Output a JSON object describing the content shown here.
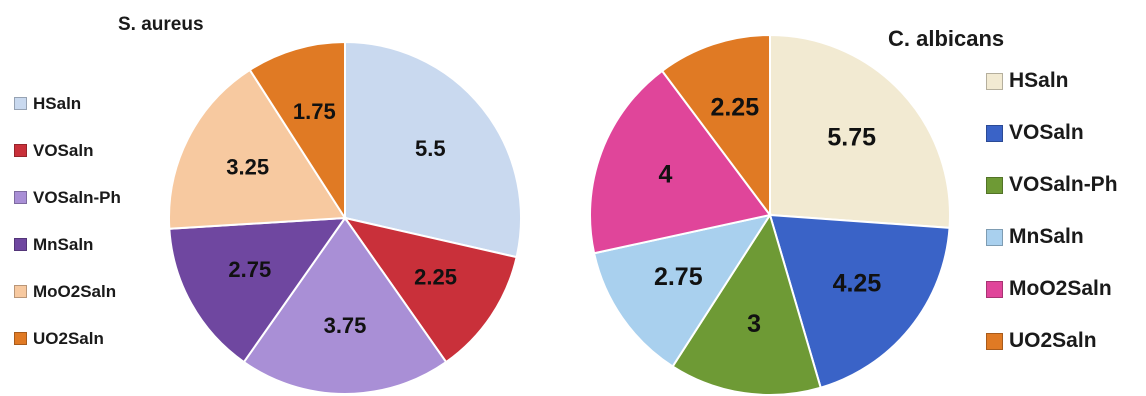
{
  "chart_data": [
    {
      "type": "pie",
      "title": "S. aureus",
      "categories": [
        "HSaln",
        "VOSaln",
        "VOSaln-Ph",
        "MnSaln",
        "MoO2Saln",
        "UO2Saln"
      ],
      "values": [
        5.5,
        2.25,
        3.75,
        2.75,
        3.25,
        1.75
      ],
      "colors": [
        "#c9d9ef",
        "#c9303a",
        "#a98fd6",
        "#6f47a0",
        "#f7c9a0",
        "#e07a24"
      ],
      "legend_position": "left"
    },
    {
      "type": "pie",
      "title": "C. albicans",
      "categories": [
        "HSaln",
        "VOSaln",
        "VOSaln-Ph",
        "MnSaln",
        "MoO2Saln",
        "UO2Saln"
      ],
      "values": [
        5.75,
        4.25,
        3,
        2.75,
        4,
        2.25
      ],
      "colors": [
        "#f2ead2",
        "#3a63c7",
        "#6e9a35",
        "#a9d0ee",
        "#e0459a",
        "#e07a24"
      ],
      "legend_position": "right"
    }
  ]
}
